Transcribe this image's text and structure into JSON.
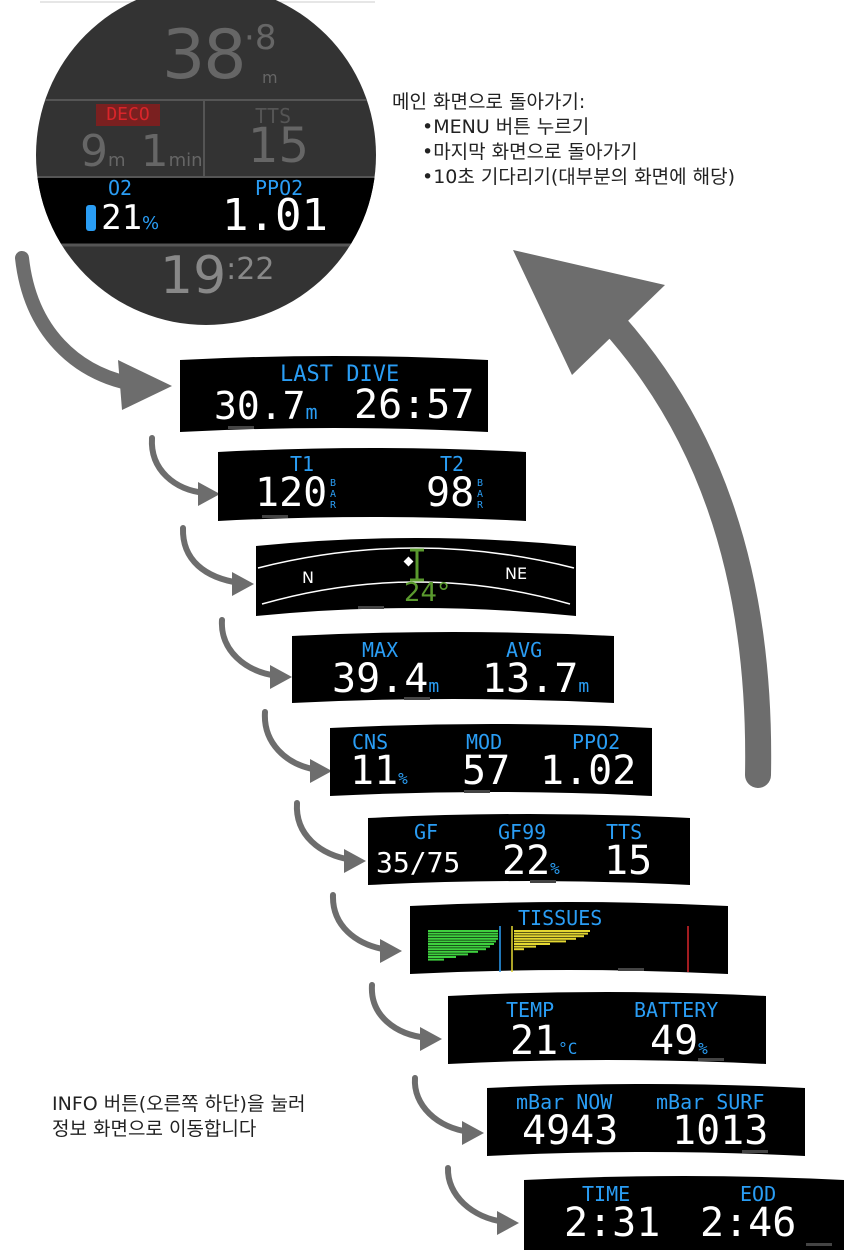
{
  "colors": {
    "label": "#2a9df4",
    "value": "#ffffff",
    "dim": "#666666",
    "deco": "#d9252a",
    "arrow": "#6d6d6d",
    "compass_heading": "#5a9a2e"
  },
  "main_watch": {
    "depth": "38",
    "depth_decimal": "8",
    "depth_unit": "m",
    "deco_label": "DECO",
    "deco_depth": "9",
    "deco_depth_unit": "m",
    "deco_time": "1",
    "deco_time_unit": "min",
    "tts_label": "TTS",
    "tts_value": "15",
    "o2_label": "O2",
    "o2_value": "21",
    "o2_unit": "%",
    "ppo2_label": "PPO2",
    "ppo2_value": "1.01",
    "clock_hours": "19",
    "clock_minutes": "22"
  },
  "return_note": {
    "title": "메인 화면으로 돌아가기:",
    "items": [
      "•MENU 버튼 누르기",
      "•마지막 화면으로 돌아가기",
      "•10초 기다리기(대부분의 화면에 해당)"
    ]
  },
  "info_note": {
    "lines": [
      "INFO 버튼(오른쪽 하단)을 눌러",
      "정보 화면으로 이동합니다"
    ]
  },
  "screens": {
    "last_dive": {
      "label": "LAST DIVE",
      "depth": "30.7",
      "depth_unit": "m",
      "time": "26:57"
    },
    "tanks": {
      "t1_label": "T1",
      "t1_value": "120",
      "t2_label": "T2",
      "t2_value": "98",
      "unit": "BAR"
    },
    "compass": {
      "left_label": "N",
      "right_label": "NE",
      "heading": "24°"
    },
    "depth_stats": {
      "max_label": "MAX",
      "max_value": "39.4",
      "avg_label": "AVG",
      "avg_value": "13.7",
      "unit": "m"
    },
    "oxygen": {
      "cns_label": "CNS",
      "cns_value": "11",
      "cns_unit": "%",
      "mod_label": "MOD",
      "mod_value": "57",
      "ppo2_label": "PPO2",
      "ppo2_value": "1.02"
    },
    "gradient": {
      "gf_label": "GF",
      "gf_value": "35/75",
      "gf99_label": "GF99",
      "gf99_value": "22",
      "gf99_unit": "%",
      "tts_label": "TTS",
      "tts_value": "15"
    },
    "tissues": {
      "label": "TISSUES"
    },
    "environment": {
      "temp_label": "TEMP",
      "temp_value": "21",
      "temp_unit": "°C",
      "battery_label": "BATTERY",
      "battery_value": "49",
      "battery_unit": "%"
    },
    "pressure": {
      "now_label": "mBar NOW",
      "now_value": "4943",
      "surf_label": "mBar SURF",
      "surf_value": "1013"
    },
    "time": {
      "time_label": "TIME",
      "time_value": "2:31",
      "eod_label": "EOD",
      "eod_value": "2:46"
    }
  }
}
